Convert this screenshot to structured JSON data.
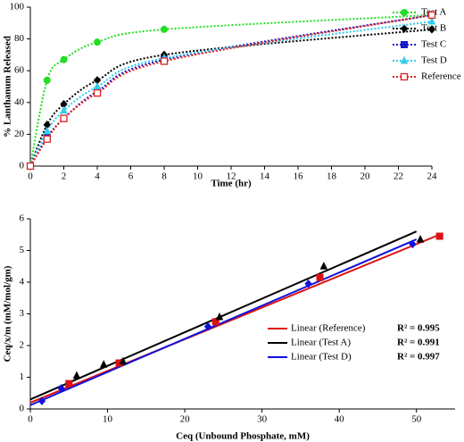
{
  "chart_data": [
    {
      "type": "line",
      "x_label": "Time (hr)",
      "y_label": "% Lanthanum Released",
      "x": [
        0,
        1,
        2,
        4,
        8,
        24
      ],
      "xlim": [
        0,
        24
      ],
      "xticks": [
        0,
        2,
        4,
        6,
        8,
        10,
        12,
        14,
        16,
        18,
        20,
        22,
        24
      ],
      "ylim": [
        0,
        100
      ],
      "yticks": [
        0,
        20,
        40,
        60,
        80,
        100
      ],
      "legend": "right",
      "series": [
        {
          "name": "Test A",
          "color": "#22dd22",
          "marker": "circle",
          "values": [
            0,
            54,
            67,
            78,
            86,
            95
          ]
        },
        {
          "name": "Test B",
          "color": "#000000",
          "marker": "diamond",
          "values": [
            0,
            26,
            39,
            54,
            70,
            86
          ]
        },
        {
          "name": "Test C",
          "color": "#1a1acc",
          "marker": "square",
          "values": [
            0,
            18,
            30,
            47,
            67,
            95
          ]
        },
        {
          "name": "Test D",
          "color": "#33ccee",
          "marker": "triangle",
          "values": [
            0,
            22,
            35,
            50,
            68,
            91
          ]
        },
        {
          "name": "Reference",
          "color": "#dd2222",
          "marker": "open-square",
          "values": [
            0,
            17,
            30,
            46,
            66,
            95
          ]
        }
      ]
    },
    {
      "type": "scatter",
      "x_label": "Ceq (Unbound Phosphate, mM)",
      "y_label": "Ceq/x/m (mM/mol/gm)",
      "xlim": [
        0,
        55
      ],
      "xticks": [
        0,
        10,
        20,
        30,
        40,
        50
      ],
      "ylim": [
        0,
        6
      ],
      "yticks": [
        0,
        1,
        2,
        3,
        4,
        5,
        6
      ],
      "series": [
        {
          "color": "#dd1111",
          "marker": "square",
          "x": [
            5,
            11.5,
            24,
            37.5,
            53
          ],
          "values": [
            0.8,
            1.45,
            2.75,
            4.15,
            5.45
          ]
        },
        {
          "color": "#000000",
          "marker": "triangle",
          "x": [
            6,
            9.5,
            12,
            24.5,
            38,
            50.5
          ],
          "values": [
            1.05,
            1.4,
            1.5,
            2.9,
            4.5,
            5.35
          ]
        },
        {
          "color": "#1111dd",
          "marker": "diamond",
          "x": [
            1.5,
            4,
            23,
            36,
            49.5
          ],
          "values": [
            0.25,
            0.65,
            2.6,
            3.95,
            5.2
          ]
        }
      ],
      "fits": [
        {
          "name": "Linear (Reference)",
          "color": "#dd1111",
          "r2": "R² = 0.995",
          "x": [
            0,
            53
          ],
          "values": [
            0.2,
            5.5
          ]
        },
        {
          "name": "Linear (Test A)",
          "color": "#000000",
          "r2": "R² = 0.991",
          "x": [
            0,
            50
          ],
          "values": [
            0.3,
            5.6
          ]
        },
        {
          "name": "Linear (Test D)",
          "color": "#1111dd",
          "r2": "R² = 0.997",
          "x": [
            0,
            50
          ],
          "values": [
            0.12,
            5.35
          ]
        }
      ]
    }
  ]
}
